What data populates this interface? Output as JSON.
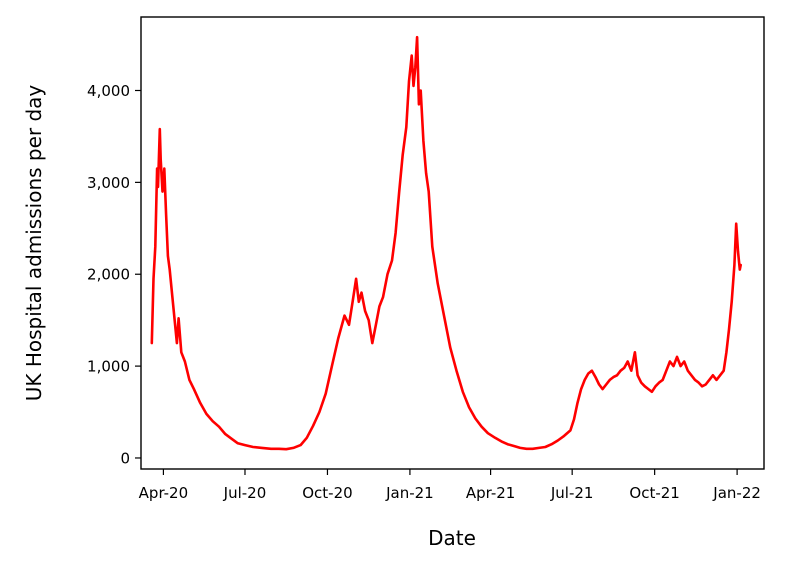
{
  "chart_data": {
    "type": "line",
    "title": "",
    "xlabel": "Date",
    "ylabel": "UK Hospital admissions per day",
    "colors": {
      "series": "#ff0000",
      "axis": "#000000",
      "background": "#ffffff"
    },
    "grid": false,
    "legend": "none",
    "xlim": [
      "2020-03-07",
      "2022-01-31"
    ],
    "ylim": [
      -120,
      4800
    ],
    "x_ticks": [
      {
        "date": "2020-04-01",
        "label": "Apr-20"
      },
      {
        "date": "2020-07-01",
        "label": "Jul-20"
      },
      {
        "date": "2020-10-01",
        "label": "Oct-20"
      },
      {
        "date": "2021-01-01",
        "label": "Jan-21"
      },
      {
        "date": "2021-04-01",
        "label": "Apr-21"
      },
      {
        "date": "2021-07-01",
        "label": "Jul-21"
      },
      {
        "date": "2021-10-01",
        "label": "Oct-21"
      },
      {
        "date": "2022-01-01",
        "label": "Jan-22"
      }
    ],
    "y_ticks": [
      {
        "value": 0,
        "label": "0"
      },
      {
        "value": 1000,
        "label": "1,000"
      },
      {
        "value": 2000,
        "label": "2,000"
      },
      {
        "value": 3000,
        "label": "3,000"
      },
      {
        "value": 4000,
        "label": "4,000"
      }
    ],
    "series": [
      {
        "points": [
          [
            "2020-03-19",
            1250
          ],
          [
            "2020-03-21",
            1950
          ],
          [
            "2020-03-23",
            2300
          ],
          [
            "2020-03-25",
            3150
          ],
          [
            "2020-03-26",
            2950
          ],
          [
            "2020-03-28",
            3580
          ],
          [
            "2020-03-29",
            3250
          ],
          [
            "2020-03-31",
            2900
          ],
          [
            "2020-04-02",
            3150
          ],
          [
            "2020-04-04",
            2650
          ],
          [
            "2020-04-06",
            2200
          ],
          [
            "2020-04-08",
            2050
          ],
          [
            "2020-04-11",
            1750
          ],
          [
            "2020-04-14",
            1450
          ],
          [
            "2020-04-16",
            1250
          ],
          [
            "2020-04-18",
            1520
          ],
          [
            "2020-04-21",
            1150
          ],
          [
            "2020-04-25",
            1050
          ],
          [
            "2020-04-30",
            850
          ],
          [
            "2020-05-05",
            750
          ],
          [
            "2020-05-12",
            600
          ],
          [
            "2020-05-19",
            480
          ],
          [
            "2020-05-26",
            400
          ],
          [
            "2020-06-02",
            340
          ],
          [
            "2020-06-09",
            260
          ],
          [
            "2020-06-16",
            210
          ],
          [
            "2020-06-23",
            160
          ],
          [
            "2020-07-01",
            140
          ],
          [
            "2020-07-10",
            120
          ],
          [
            "2020-07-20",
            110
          ],
          [
            "2020-07-30",
            100
          ],
          [
            "2020-08-08",
            100
          ],
          [
            "2020-08-16",
            95
          ],
          [
            "2020-08-24",
            110
          ],
          [
            "2020-09-01",
            140
          ],
          [
            "2020-09-08",
            220
          ],
          [
            "2020-09-15",
            350
          ],
          [
            "2020-09-22",
            500
          ],
          [
            "2020-09-29",
            700
          ],
          [
            "2020-10-06",
            1000
          ],
          [
            "2020-10-13",
            1300
          ],
          [
            "2020-10-20",
            1550
          ],
          [
            "2020-10-25",
            1450
          ],
          [
            "2020-10-29",
            1700
          ],
          [
            "2020-11-02",
            1950
          ],
          [
            "2020-11-05",
            1700
          ],
          [
            "2020-11-08",
            1800
          ],
          [
            "2020-11-12",
            1600
          ],
          [
            "2020-11-16",
            1500
          ],
          [
            "2020-11-20",
            1250
          ],
          [
            "2020-11-24",
            1450
          ],
          [
            "2020-11-28",
            1650
          ],
          [
            "2020-12-02",
            1750
          ],
          [
            "2020-12-07",
            2000
          ],
          [
            "2020-12-12",
            2150
          ],
          [
            "2020-12-16",
            2450
          ],
          [
            "2020-12-20",
            2900
          ],
          [
            "2020-12-24",
            3300
          ],
          [
            "2020-12-28",
            3600
          ],
          [
            "2020-12-31",
            4100
          ],
          [
            "2021-01-03",
            4380
          ],
          [
            "2021-01-05",
            4050
          ],
          [
            "2021-01-07",
            4250
          ],
          [
            "2021-01-09",
            4580
          ],
          [
            "2021-01-11",
            3850
          ],
          [
            "2021-01-13",
            4000
          ],
          [
            "2021-01-16",
            3450
          ],
          [
            "2021-01-19",
            3100
          ],
          [
            "2021-01-22",
            2900
          ],
          [
            "2021-01-26",
            2300
          ],
          [
            "2021-02-01",
            1900
          ],
          [
            "2021-02-08",
            1550
          ],
          [
            "2021-02-15",
            1200
          ],
          [
            "2021-02-22",
            950
          ],
          [
            "2021-03-01",
            720
          ],
          [
            "2021-03-08",
            550
          ],
          [
            "2021-03-15",
            430
          ],
          [
            "2021-03-22",
            340
          ],
          [
            "2021-03-29",
            270
          ],
          [
            "2021-04-06",
            220
          ],
          [
            "2021-04-13",
            180
          ],
          [
            "2021-04-20",
            150
          ],
          [
            "2021-04-27",
            130
          ],
          [
            "2021-05-04",
            110
          ],
          [
            "2021-05-11",
            100
          ],
          [
            "2021-05-18",
            100
          ],
          [
            "2021-05-25",
            110
          ],
          [
            "2021-06-01",
            120
          ],
          [
            "2021-06-08",
            150
          ],
          [
            "2021-06-15",
            190
          ],
          [
            "2021-06-22",
            240
          ],
          [
            "2021-06-29",
            300
          ],
          [
            "2021-07-03",
            420
          ],
          [
            "2021-07-07",
            600
          ],
          [
            "2021-07-11",
            750
          ],
          [
            "2021-07-15",
            850
          ],
          [
            "2021-07-19",
            920
          ],
          [
            "2021-07-23",
            950
          ],
          [
            "2021-07-27",
            880
          ],
          [
            "2021-07-31",
            800
          ],
          [
            "2021-08-04",
            750
          ],
          [
            "2021-08-08",
            800
          ],
          [
            "2021-08-12",
            850
          ],
          [
            "2021-08-16",
            880
          ],
          [
            "2021-08-20",
            900
          ],
          [
            "2021-08-24",
            950
          ],
          [
            "2021-08-28",
            980
          ],
          [
            "2021-09-01",
            1050
          ],
          [
            "2021-09-05",
            950
          ],
          [
            "2021-09-09",
            1150
          ],
          [
            "2021-09-12",
            900
          ],
          [
            "2021-09-16",
            820
          ],
          [
            "2021-09-20",
            780
          ],
          [
            "2021-09-24",
            750
          ],
          [
            "2021-09-28",
            720
          ],
          [
            "2021-10-02",
            780
          ],
          [
            "2021-10-06",
            820
          ],
          [
            "2021-10-10",
            850
          ],
          [
            "2021-10-14",
            950
          ],
          [
            "2021-10-18",
            1050
          ],
          [
            "2021-10-22",
            1000
          ],
          [
            "2021-10-26",
            1100
          ],
          [
            "2021-10-30",
            1000
          ],
          [
            "2021-11-03",
            1050
          ],
          [
            "2021-11-07",
            950
          ],
          [
            "2021-11-11",
            900
          ],
          [
            "2021-11-15",
            850
          ],
          [
            "2021-11-19",
            820
          ],
          [
            "2021-11-23",
            780
          ],
          [
            "2021-11-27",
            800
          ],
          [
            "2021-12-01",
            850
          ],
          [
            "2021-12-05",
            900
          ],
          [
            "2021-12-09",
            850
          ],
          [
            "2021-12-13",
            900
          ],
          [
            "2021-12-17",
            950
          ],
          [
            "2021-12-20",
            1150
          ],
          [
            "2021-12-23",
            1400
          ],
          [
            "2021-12-26",
            1700
          ],
          [
            "2021-12-29",
            2100
          ],
          [
            "2021-12-31",
            2550
          ],
          [
            "2022-01-02",
            2250
          ],
          [
            "2022-01-04",
            2050
          ],
          [
            "2022-01-05",
            2100
          ]
        ]
      }
    ]
  }
}
